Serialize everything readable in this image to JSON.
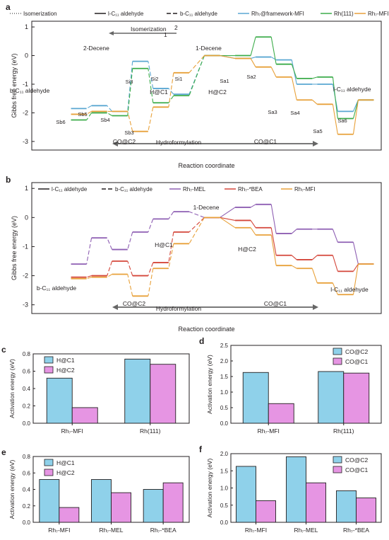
{
  "colors": {
    "rh_framework": "#5aa7d2",
    "rh111": "#3cac4a",
    "rh7mfi": "#e8a13a",
    "rh7mel": "#8e5fb3",
    "rh7bea": "#d4463a",
    "dark": "#231f20",
    "bar_blue": "#8fd1ea",
    "bar_pink": "#e695e3",
    "grey": "#666666"
  },
  "chart_data": [
    {
      "panel": "a",
      "type": "line",
      "ylabel": "Gibbs free energy (eV)",
      "xlabel": "Reaction coordinate",
      "ylim": [
        -3.3,
        1.2
      ],
      "yticks": [
        -3,
        -2,
        -1,
        0,
        1
      ],
      "legend": [
        "Isomerization",
        "l-C11 aldehyde",
        "b-C11 aldehyde",
        "Rh7@framework-MFI",
        "Rh(111)",
        "Rh7-MFI"
      ],
      "annotations": [
        "Isomerization",
        "2-Decene",
        "1-Decene",
        "1",
        "2",
        "b-C11 aldehyde",
        "l-C11 aldehyde",
        "Si3",
        "Si2",
        "Si1",
        "Sa1",
        "Sa2",
        "Sa3",
        "Sa4",
        "Sa5",
        "Sa6",
        "Sb6",
        "Sb5",
        "Sb4",
        "Sb3",
        "H@C1",
        "H@C2",
        "CO@C2",
        "CO@C1",
        "Hydroformylation"
      ],
      "series": [
        {
          "name": "Rh7@framework-MFI",
          "branch": "linear",
          "x": [
            1.5,
            2.5,
            3.5,
            4.5,
            5.5,
            6.5,
            7.5
          ],
          "y": [
            -0.1,
            -0.05,
            -0.15,
            -1.0,
            -1.0,
            -1.95,
            -1.55
          ]
        },
        {
          "name": "Rh(111)",
          "branch": "linear",
          "x": [
            1.5,
            2.5,
            3.5,
            4.5,
            5.5,
            6.5,
            7.5
          ],
          "y": [
            0.0,
            0.65,
            -0.3,
            -0.8,
            -0.75,
            -2.2,
            -1.55
          ]
        },
        {
          "name": "Rh7-MFI",
          "branch": "linear",
          "x": [
            1.5,
            2.5,
            3.5,
            4.5,
            5.5,
            6.5,
            7.5
          ],
          "y": [
            -0.1,
            -0.4,
            -0.75,
            -1.55,
            -1.7,
            -2.75,
            -1.55
          ]
        },
        {
          "name": "Rh7@framework-MFI",
          "branch": "branched",
          "x": [
            -1.5,
            -2.5,
            -3.5,
            -4.5,
            -5.5,
            -6.5
          ],
          "y": [
            -1.35,
            -1.15,
            -0.2,
            -1.95,
            -1.75,
            -1.85
          ]
        },
        {
          "name": "Rh(111)",
          "branch": "branched",
          "x": [
            -1.5,
            -2.5,
            -3.5,
            -4.5,
            -5.5,
            -6.5
          ],
          "y": [
            -1.4,
            -1.65,
            -0.45,
            -2.1,
            -2.0,
            -2.25
          ]
        },
        {
          "name": "Rh7-MFI",
          "branch": "branched",
          "x": [
            -1.5,
            -2.5,
            -3.5,
            -4.5,
            -5.5,
            -6.5
          ],
          "y": [
            -0.6,
            -1.8,
            -2.65,
            -1.95,
            -1.95,
            -2.05
          ]
        }
      ]
    },
    {
      "panel": "b",
      "type": "line",
      "ylabel": "Gibbs free energy (eV)",
      "xlabel": "Reaction coordinate",
      "ylim": [
        -3.3,
        1.2
      ],
      "yticks": [
        -3,
        -2,
        -1,
        0,
        1
      ],
      "legend": [
        "l-C11 aldehyde",
        "b-C11 aldehyde",
        "Rh7-MEL",
        "Rh7-*BEA",
        "Rh7-MFI"
      ],
      "annotations": [
        "1-Decene",
        "H@C1",
        "H@C2",
        "b-C11 aldehyde",
        "l-C11 aldehyde",
        "CO@C2",
        "CO@C1",
        "Hydroformylation"
      ],
      "series": [
        {
          "name": "Rh7-MEL",
          "branch": "linear",
          "x": [
            1.5,
            2.5,
            3.5,
            4.5,
            5.5,
            6.5,
            7.5
          ],
          "y": [
            0.35,
            0.45,
            -0.55,
            -0.4,
            -0.4,
            -0.85,
            -1.6
          ]
        },
        {
          "name": "Rh7-*BEA",
          "branch": "linear",
          "x": [
            1.5,
            2.5,
            3.5,
            4.5,
            5.5,
            6.5,
            7.5
          ],
          "y": [
            -0.1,
            -0.35,
            -1.3,
            -1.45,
            -1.3,
            -1.85,
            -1.6
          ]
        },
        {
          "name": "Rh7-MFI",
          "branch": "linear",
          "x": [
            1.5,
            2.5,
            3.5,
            4.5,
            5.5,
            6.5,
            7.5
          ],
          "y": [
            -0.35,
            -0.6,
            -1.65,
            -1.75,
            -2.25,
            -2.65,
            -1.6
          ]
        },
        {
          "name": "Rh7-MEL",
          "branch": "branched",
          "x": [
            -1.5,
            -2.5,
            -3.5,
            -4.5,
            -5.5,
            -6.5
          ],
          "y": [
            0.2,
            -0.05,
            -0.5,
            -1.1,
            -0.7,
            -1.6
          ]
        },
        {
          "name": "Rh7-*BEA",
          "branch": "branched",
          "x": [
            -1.5,
            -2.5,
            -3.5,
            -4.5,
            -5.5,
            -6.5
          ],
          "y": [
            -0.5,
            -1.55,
            -2.0,
            -1.5,
            -2.0,
            -2.05
          ]
        },
        {
          "name": "Rh7-MFI",
          "branch": "branched",
          "x": [
            -1.5,
            -2.5,
            -3.5,
            -4.5,
            -5.5,
            -6.5
          ],
          "y": [
            -0.9,
            -1.75,
            -2.7,
            -1.95,
            -2.05,
            -2.1
          ]
        }
      ]
    },
    {
      "panel": "c",
      "type": "bar",
      "ylabel": "Activation energy (eV)",
      "categories": [
        "Rh7-MFI",
        "Rh(111)"
      ],
      "ylim": [
        0,
        0.8
      ],
      "yticks": [
        0,
        0.2,
        0.4,
        0.6,
        0.8
      ],
      "series": [
        {
          "name": "H@C1",
          "values": [
            0.52,
            0.74
          ]
        },
        {
          "name": "H@C2",
          "values": [
            0.18,
            0.68
          ]
        }
      ]
    },
    {
      "panel": "d",
      "type": "bar",
      "ylabel": "Activation energy (eV)",
      "categories": [
        "Rh7-MFI",
        "Rh(111)"
      ],
      "ylim": [
        0,
        2.5
      ],
      "yticks": [
        0,
        0.5,
        1.0,
        1.5,
        2.0,
        2.5
      ],
      "series": [
        {
          "name": "CO@C2",
          "values": [
            1.63,
            1.66
          ]
        },
        {
          "name": "CO@C1",
          "values": [
            0.63,
            1.61
          ]
        }
      ]
    },
    {
      "panel": "e",
      "type": "bar",
      "ylabel": "Activation energy (eV)",
      "categories": [
        "Rh7-MFI",
        "Rh7-MEL",
        "Rh7-*BEA"
      ],
      "ylim": [
        0,
        0.8
      ],
      "yticks": [
        0,
        0.2,
        0.4,
        0.6,
        0.8
      ],
      "series": [
        {
          "name": "H@C1",
          "values": [
            0.52,
            0.52,
            0.4
          ]
        },
        {
          "name": "H@C2",
          "values": [
            0.18,
            0.36,
            0.48
          ]
        }
      ]
    },
    {
      "panel": "f",
      "type": "bar",
      "ylabel": "Activation energy (eV)",
      "categories": [
        "Rh7-MFI",
        "Rh7-MEL",
        "Rh7-*BEA"
      ],
      "ylim": [
        0,
        2.0
      ],
      "yticks": [
        0,
        0.5,
        1.0,
        1.5,
        2.0
      ],
      "series": [
        {
          "name": "CO@C2",
          "values": [
            1.63,
            1.91,
            0.92
          ]
        },
        {
          "name": "CO@C1",
          "values": [
            0.63,
            1.15,
            0.71
          ]
        }
      ]
    }
  ]
}
